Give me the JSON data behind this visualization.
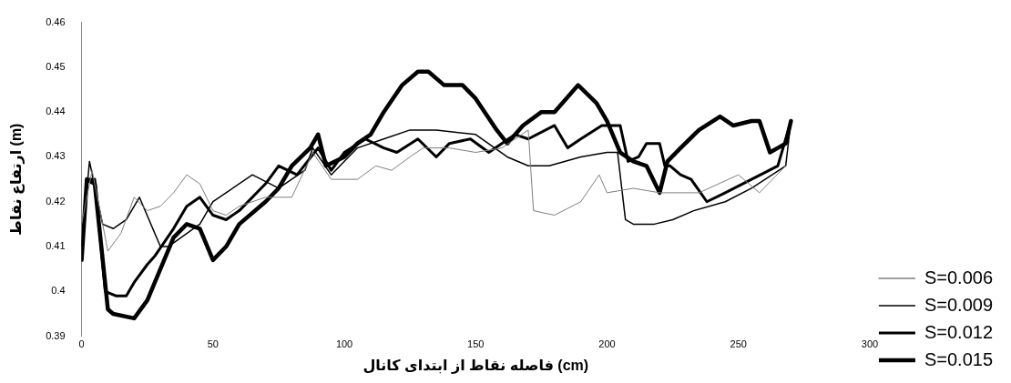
{
  "chart_data": {
    "type": "line",
    "xlabel": "فاصله نقاط از ابتدای کانال (cm)",
    "ylabel": "ارتفاع نقاط (m)",
    "xlim": [
      0,
      300
    ],
    "xticks": [
      0,
      50,
      100,
      150,
      200,
      250,
      300
    ],
    "ylim": [
      0.39,
      0.46
    ],
    "yticks": [
      0.39,
      0.4,
      0.41,
      0.42,
      0.43,
      0.44,
      0.45,
      0.46
    ],
    "grid": false,
    "legend": "right",
    "marker": "none",
    "line_style": "solid",
    "series": [
      {
        "name": "S=0.006",
        "color": "#7f7f7f",
        "x": [
          0,
          4,
          10,
          15,
          20,
          25,
          30,
          35,
          40,
          45,
          50,
          55,
          60,
          70,
          80,
          88,
          95,
          105,
          112,
          118,
          125,
          130,
          140,
          150,
          160,
          170,
          172,
          180,
          190,
          197,
          200,
          210,
          220,
          235,
          250,
          258,
          268
        ],
        "values": [
          0.415,
          0.427,
          0.409,
          0.413,
          0.421,
          0.418,
          0.419,
          0.422,
          0.426,
          0.424,
          0.418,
          0.417,
          0.419,
          0.421,
          0.421,
          0.431,
          0.425,
          0.425,
          0.428,
          0.427,
          0.43,
          0.432,
          0.432,
          0.431,
          0.432,
          0.436,
          0.418,
          0.417,
          0.42,
          0.426,
          0.422,
          0.423,
          0.422,
          0.422,
          0.426,
          0.422,
          0.428
        ]
      },
      {
        "name": "S=0.009",
        "color": "#000000",
        "x": [
          0,
          3,
          8,
          12,
          17,
          22,
          30,
          33,
          45,
          50,
          55,
          65,
          75,
          85,
          88,
          95,
          105,
          115,
          125,
          135,
          150,
          162,
          170,
          178,
          190,
          200,
          204,
          207,
          210,
          218,
          225,
          233,
          245,
          255,
          268,
          270
        ],
        "values": [
          0.41,
          0.429,
          0.415,
          0.414,
          0.416,
          0.421,
          0.41,
          0.41,
          0.415,
          0.42,
          0.422,
          0.426,
          0.423,
          0.427,
          0.432,
          0.426,
          0.432,
          0.434,
          0.436,
          0.436,
          0.435,
          0.43,
          0.428,
          0.428,
          0.43,
          0.431,
          0.431,
          0.416,
          0.415,
          0.415,
          0.416,
          0.418,
          0.42,
          0.423,
          0.428,
          0.438
        ]
      },
      {
        "name": "S=0.012",
        "color": "#000000",
        "x": [
          0,
          2,
          5,
          9,
          13,
          17,
          20,
          25,
          28,
          35,
          40,
          45,
          50,
          55,
          60,
          70,
          75,
          82,
          90,
          95,
          100,
          108,
          115,
          120,
          128,
          135,
          140,
          148,
          155,
          165,
          170,
          180,
          185,
          190,
          198,
          205,
          208,
          212,
          215,
          220,
          222,
          224,
          228,
          232,
          238,
          245,
          255,
          265,
          270
        ],
        "values": [
          0.407,
          0.425,
          0.425,
          0.4,
          0.399,
          0.399,
          0.402,
          0.406,
          0.408,
          0.414,
          0.419,
          0.421,
          0.417,
          0.416,
          0.418,
          0.424,
          0.428,
          0.426,
          0.432,
          0.427,
          0.431,
          0.434,
          0.432,
          0.431,
          0.434,
          0.43,
          0.433,
          0.434,
          0.431,
          0.435,
          0.434,
          0.437,
          0.432,
          0.434,
          0.437,
          0.437,
          0.429,
          0.43,
          0.433,
          0.433,
          0.428,
          0.428,
          0.426,
          0.425,
          0.42,
          0.422,
          0.425,
          0.428,
          0.438
        ]
      },
      {
        "name": "S=0.015",
        "color": "#000000",
        "x": [
          0,
          2,
          5,
          10,
          12,
          20,
          25,
          30,
          35,
          40,
          45,
          50,
          55,
          60,
          70,
          75,
          80,
          87,
          90,
          93,
          100,
          105,
          110,
          115,
          122,
          128,
          132,
          138,
          145,
          150,
          158,
          162,
          168,
          175,
          180,
          189,
          196,
          200,
          205,
          210,
          215,
          220,
          223,
          228,
          235,
          243,
          248,
          255,
          258,
          262,
          265,
          268,
          270
        ],
        "values": [
          0.407,
          0.425,
          0.424,
          0.396,
          0.395,
          0.394,
          0.398,
          0.405,
          0.412,
          0.415,
          0.414,
          0.407,
          0.41,
          0.415,
          0.42,
          0.423,
          0.428,
          0.432,
          0.435,
          0.428,
          0.43,
          0.433,
          0.435,
          0.44,
          0.446,
          0.449,
          0.449,
          0.446,
          0.446,
          0.443,
          0.436,
          0.433,
          0.437,
          0.44,
          0.44,
          0.446,
          0.442,
          0.438,
          0.431,
          0.429,
          0.428,
          0.422,
          0.429,
          0.432,
          0.436,
          0.439,
          0.437,
          0.438,
          0.438,
          0.431,
          0.432,
          0.433,
          0.438
        ]
      }
    ]
  }
}
